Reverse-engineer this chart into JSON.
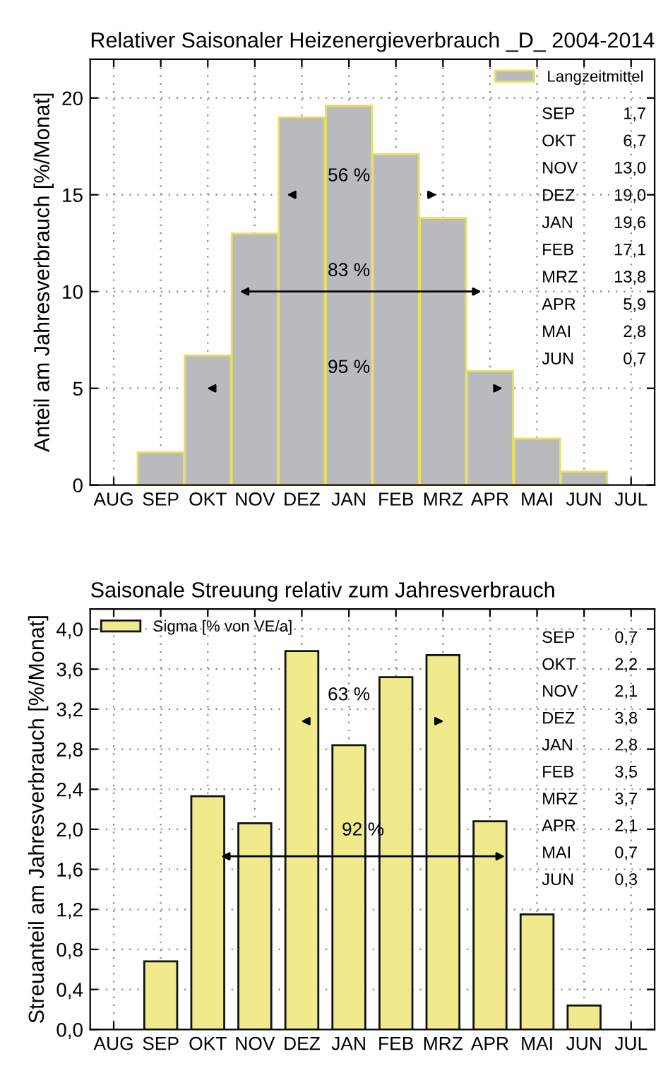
{
  "chart_data": [
    {
      "type": "bar",
      "title": "Relativer Saisonaler Heizenergieverbrauch _D_ 2004-2014",
      "ylabel": "Anteil am Jahresverbrauch [%/Monat]",
      "categories": [
        "AUG",
        "SEP",
        "OKT",
        "NOV",
        "DEZ",
        "JAN",
        "FEB",
        "MRZ",
        "APR",
        "MAI",
        "JUN",
        "JUL"
      ],
      "series": [
        {
          "name": "Langzeitmittel",
          "color": "#b9babe",
          "values": [
            null,
            1.7,
            6.7,
            13.0,
            19.0,
            19.6,
            17.1,
            13.8,
            5.9,
            2.4,
            0.7,
            null
          ]
        }
      ],
      "ylim": [
        0,
        22
      ],
      "yticks": [
        0,
        5,
        10,
        15,
        20
      ],
      "grid": true,
      "legend": "top right",
      "annotations": [
        "56 %",
        "83 %",
        "95 %",
        "SEP 1,7",
        "OKT 6,7",
        "NOV 13,0",
        "DEZ 19,0",
        "JAN 19,6",
        "FEB 17,1",
        "MRZ 13,8",
        "APR 5,9",
        "MAI 2,8",
        "JUN 0,7"
      ]
    },
    {
      "type": "bar",
      "title": "Saisonale Streuung relativ zum Jahresverbrauch",
      "ylabel": "Streuanteil am Jahresverbrauch [%/Monat]",
      "categories": [
        "AUG",
        "SEP",
        "OKT",
        "NOV",
        "DEZ",
        "JAN",
        "FEB",
        "MRZ",
        "APR",
        "MAI",
        "JUN",
        "JUL"
      ],
      "series": [
        {
          "name": "Sigma [% von VE/a]",
          "color": "#f0ea8c",
          "values": [
            null,
            0.68,
            2.33,
            2.06,
            3.78,
            2.84,
            3.52,
            3.74,
            2.08,
            1.15,
            0.24,
            null
          ]
        }
      ],
      "ylim": [
        0,
        4.2
      ],
      "yticks": [
        {
          "value": 0,
          "label": "0,0"
        },
        {
          "value": 0.4,
          "label": "0,4"
        },
        {
          "value": 0.8,
          "label": "0,8"
        },
        {
          "value": 1.2,
          "label": "1,2"
        },
        {
          "value": 1.6,
          "label": "1,6"
        },
        {
          "value": 2.0,
          "label": "2,0"
        },
        {
          "value": 2.4,
          "label": "2,4"
        },
        {
          "value": 2.8,
          "label": "2,8"
        },
        {
          "value": 3.2,
          "label": "3,2"
        },
        {
          "value": 3.6,
          "label": "3,6"
        },
        {
          "value": 4.0,
          "label": "4,0"
        }
      ],
      "grid": true,
      "legend": "top left",
      "annotations": [
        "63 %",
        "92 %",
        "SEP 0,7",
        "OKT 2,2",
        "NOV 2,1",
        "DEZ 3,8",
        "JAN 2,8",
        "FEB 3,5",
        "MRZ 3,7",
        "APR 2,1",
        "MAI 0,7",
        "JUN 0,3"
      ]
    }
  ]
}
